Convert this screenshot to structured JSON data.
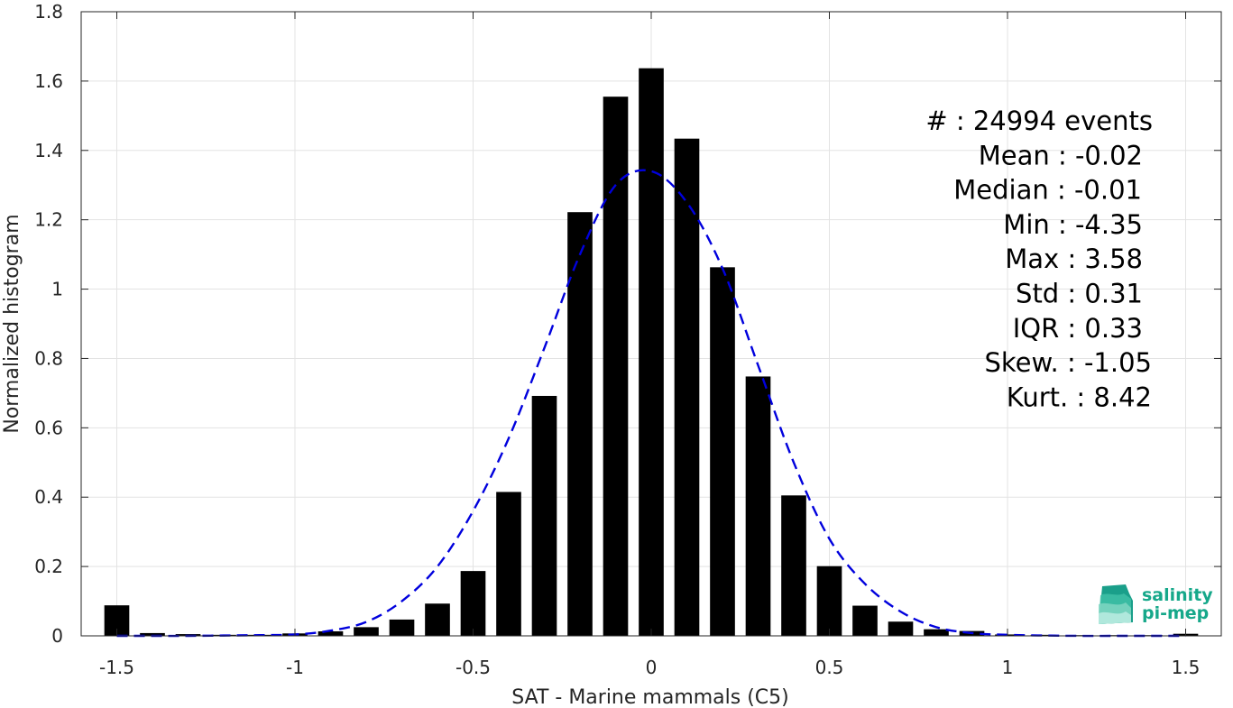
{
  "chart_data": {
    "type": "bar",
    "xlabel": "SAT - Marine mammals (C5)",
    "ylabel": "Normalized histogram",
    "xlim": [
      -1.6,
      1.6
    ],
    "ylim": [
      0,
      1.8
    ],
    "xticks": [
      -1.5,
      -1,
      -0.5,
      0,
      0.5,
      1,
      1.5
    ],
    "xtick_labels": [
      "-1.5",
      "-1",
      "-0.5",
      "0",
      "0.5",
      "1",
      "1.5"
    ],
    "yticks": [
      0,
      0.2,
      0.4,
      0.6,
      0.8,
      1,
      1.2,
      1.4,
      1.6,
      1.8
    ],
    "ytick_labels": [
      "0",
      "0.2",
      "0.4",
      "0.6",
      "0.8",
      "1",
      "1.2",
      "1.4",
      "1.6",
      "1.8"
    ],
    "grid": true,
    "bar_color": "#000000",
    "bar_width": 0.07,
    "bins": [
      {
        "x": -1.5,
        "y": 0.088
      },
      {
        "x": -1.4,
        "y": 0.008
      },
      {
        "x": -1.3,
        "y": 0.005
      },
      {
        "x": -1.2,
        "y": 0.003
      },
      {
        "x": -1.1,
        "y": 0.003
      },
      {
        "x": -1.0,
        "y": 0.007
      },
      {
        "x": -0.9,
        "y": 0.013
      },
      {
        "x": -0.8,
        "y": 0.025
      },
      {
        "x": -0.7,
        "y": 0.047
      },
      {
        "x": -0.6,
        "y": 0.093
      },
      {
        "x": -0.5,
        "y": 0.187
      },
      {
        "x": -0.4,
        "y": 0.415
      },
      {
        "x": -0.3,
        "y": 0.692
      },
      {
        "x": -0.2,
        "y": 1.222
      },
      {
        "x": -0.1,
        "y": 1.555
      },
      {
        "x": 0.0,
        "y": 1.637
      },
      {
        "x": 0.1,
        "y": 1.434
      },
      {
        "x": 0.2,
        "y": 1.063
      },
      {
        "x": 0.3,
        "y": 0.748
      },
      {
        "x": 0.4,
        "y": 0.405
      },
      {
        "x": 0.5,
        "y": 0.201
      },
      {
        "x": 0.6,
        "y": 0.087
      },
      {
        "x": 0.7,
        "y": 0.041
      },
      {
        "x": 0.8,
        "y": 0.019
      },
      {
        "x": 0.9,
        "y": 0.014
      },
      {
        "x": 1.0,
        "y": 0.004
      },
      {
        "x": 1.1,
        "y": 0.003
      },
      {
        "x": 1.2,
        "y": 0.002
      },
      {
        "x": 1.3,
        "y": 0.002
      },
      {
        "x": 1.4,
        "y": 0.002
      },
      {
        "x": 1.5,
        "y": 0.006
      }
    ],
    "fit_curve": {
      "color": "#0000dd",
      "style": "dashed",
      "points": [
        [
          -1.5,
          0.0
        ],
        [
          -1.4,
          0.0
        ],
        [
          -1.3,
          0.0
        ],
        [
          -1.2,
          0.001
        ],
        [
          -1.1,
          0.002
        ],
        [
          -1.0,
          0.004
        ],
        [
          -0.9,
          0.015
        ],
        [
          -0.8,
          0.04
        ],
        [
          -0.7,
          0.1
        ],
        [
          -0.6,
          0.2
        ],
        [
          -0.5,
          0.36
        ],
        [
          -0.4,
          0.57
        ],
        [
          -0.3,
          0.83
        ],
        [
          -0.2,
          1.1
        ],
        [
          -0.1,
          1.3
        ],
        [
          0.0,
          1.34
        ],
        [
          0.1,
          1.25
        ],
        [
          0.2,
          1.06
        ],
        [
          0.3,
          0.78
        ],
        [
          0.4,
          0.5
        ],
        [
          0.5,
          0.28
        ],
        [
          0.6,
          0.15
        ],
        [
          0.7,
          0.07
        ],
        [
          0.8,
          0.025
        ],
        [
          0.9,
          0.008
        ],
        [
          1.0,
          0.003
        ],
        [
          1.1,
          0.001
        ],
        [
          1.2,
          0.0
        ],
        [
          1.3,
          0.0
        ],
        [
          1.4,
          0.0
        ],
        [
          1.5,
          0.0
        ]
      ]
    },
    "stats": [
      "#  : 24994 events",
      "Mean : -0.02",
      "Median : -0.01",
      "Min : -4.35",
      "Max : 3.58",
      "Std : 0.31",
      "IQR : 0.33",
      "Skew. : -1.05",
      "Kurt. : 8.42"
    ]
  },
  "logo": {
    "line1": "salinity",
    "line2": "pi-mep",
    "color": "#16a88a"
  }
}
